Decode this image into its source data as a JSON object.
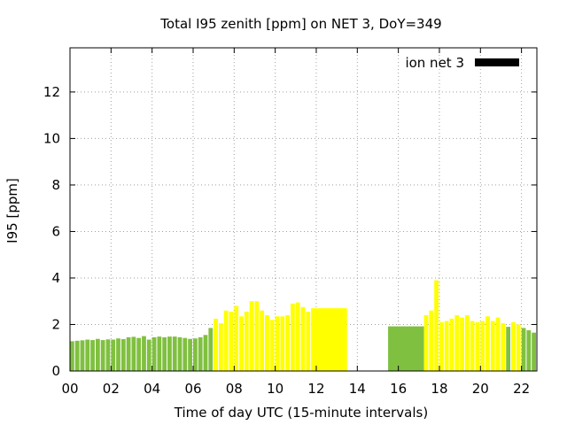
{
  "chart_data": {
    "type": "bar",
    "title": "Total I95 zenith [ppm] on NET 3, DoY=349",
    "xlabel": "Time of day UTC (15-minute intervals)",
    "ylabel": "I95 [ppm]",
    "xlim": [
      0,
      22.75
    ],
    "ylim": [
      0,
      13.9
    ],
    "xticks": [
      0,
      2,
      4,
      6,
      8,
      10,
      12,
      14,
      16,
      18,
      20,
      22
    ],
    "xtick_labels": [
      "00",
      "02",
      "04",
      "06",
      "08",
      "10",
      "12",
      "14",
      "16",
      "18",
      "20",
      "22"
    ],
    "yticks": [
      0,
      2,
      4,
      6,
      8,
      10,
      12
    ],
    "grid": true,
    "legend": {
      "label": "ion net 3",
      "color": "#000000",
      "position": "top-right"
    },
    "colors": {
      "green": "#80c040",
      "yellow": "#ffff00"
    },
    "bars": [
      {
        "start": 0.0,
        "end": 0.25,
        "value": 1.28,
        "color": "green"
      },
      {
        "start": 0.25,
        "end": 0.5,
        "value": 1.3,
        "color": "green"
      },
      {
        "start": 0.5,
        "end": 0.75,
        "value": 1.32,
        "color": "green"
      },
      {
        "start": 0.75,
        "end": 1.0,
        "value": 1.35,
        "color": "green"
      },
      {
        "start": 1.0,
        "end": 1.25,
        "value": 1.33,
        "color": "green"
      },
      {
        "start": 1.25,
        "end": 1.5,
        "value": 1.38,
        "color": "green"
      },
      {
        "start": 1.5,
        "end": 1.75,
        "value": 1.33,
        "color": "green"
      },
      {
        "start": 1.75,
        "end": 2.0,
        "value": 1.36,
        "color": "green"
      },
      {
        "start": 2.0,
        "end": 2.25,
        "value": 1.35,
        "color": "green"
      },
      {
        "start": 2.25,
        "end": 2.5,
        "value": 1.4,
        "color": "green"
      },
      {
        "start": 2.5,
        "end": 2.75,
        "value": 1.37,
        "color": "green"
      },
      {
        "start": 2.75,
        "end": 3.0,
        "value": 1.45,
        "color": "green"
      },
      {
        "start": 3.0,
        "end": 3.25,
        "value": 1.47,
        "color": "green"
      },
      {
        "start": 3.25,
        "end": 3.5,
        "value": 1.42,
        "color": "green"
      },
      {
        "start": 3.5,
        "end": 3.75,
        "value": 1.5,
        "color": "green"
      },
      {
        "start": 3.75,
        "end": 4.0,
        "value": 1.35,
        "color": "green"
      },
      {
        "start": 4.0,
        "end": 4.25,
        "value": 1.45,
        "color": "green"
      },
      {
        "start": 4.25,
        "end": 4.5,
        "value": 1.48,
        "color": "green"
      },
      {
        "start": 4.5,
        "end": 4.75,
        "value": 1.45,
        "color": "green"
      },
      {
        "start": 4.75,
        "end": 5.0,
        "value": 1.48,
        "color": "green"
      },
      {
        "start": 5.0,
        "end": 5.25,
        "value": 1.48,
        "color": "green"
      },
      {
        "start": 5.25,
        "end": 5.5,
        "value": 1.45,
        "color": "green"
      },
      {
        "start": 5.5,
        "end": 5.75,
        "value": 1.42,
        "color": "green"
      },
      {
        "start": 5.75,
        "end": 6.0,
        "value": 1.38,
        "color": "green"
      },
      {
        "start": 6.0,
        "end": 6.25,
        "value": 1.4,
        "color": "green"
      },
      {
        "start": 6.25,
        "end": 6.5,
        "value": 1.45,
        "color": "green"
      },
      {
        "start": 6.5,
        "end": 6.75,
        "value": 1.55,
        "color": "green"
      },
      {
        "start": 6.75,
        "end": 7.0,
        "value": 1.85,
        "color": "green"
      },
      {
        "start": 7.0,
        "end": 7.25,
        "value": 2.25,
        "color": "yellow"
      },
      {
        "start": 7.25,
        "end": 7.5,
        "value": 2.05,
        "color": "yellow"
      },
      {
        "start": 7.5,
        "end": 7.75,
        "value": 2.6,
        "color": "yellow"
      },
      {
        "start": 7.75,
        "end": 8.0,
        "value": 2.55,
        "color": "yellow"
      },
      {
        "start": 8.0,
        "end": 8.25,
        "value": 2.8,
        "color": "yellow"
      },
      {
        "start": 8.25,
        "end": 8.5,
        "value": 2.35,
        "color": "yellow"
      },
      {
        "start": 8.5,
        "end": 8.75,
        "value": 2.55,
        "color": "yellow"
      },
      {
        "start": 8.75,
        "end": 9.0,
        "value": 3.0,
        "color": "yellow"
      },
      {
        "start": 9.0,
        "end": 9.25,
        "value": 3.0,
        "color": "yellow"
      },
      {
        "start": 9.25,
        "end": 9.5,
        "value": 2.6,
        "color": "yellow"
      },
      {
        "start": 9.5,
        "end": 9.75,
        "value": 2.4,
        "color": "yellow"
      },
      {
        "start": 9.75,
        "end": 10.0,
        "value": 2.2,
        "color": "yellow"
      },
      {
        "start": 10.0,
        "end": 10.25,
        "value": 2.35,
        "color": "yellow"
      },
      {
        "start": 10.25,
        "end": 10.5,
        "value": 2.35,
        "color": "yellow"
      },
      {
        "start": 10.5,
        "end": 10.75,
        "value": 2.4,
        "color": "yellow"
      },
      {
        "start": 10.75,
        "end": 11.0,
        "value": 2.9,
        "color": "yellow"
      },
      {
        "start": 11.0,
        "end": 11.25,
        "value": 2.95,
        "color": "yellow"
      },
      {
        "start": 11.25,
        "end": 11.5,
        "value": 2.75,
        "color": "yellow"
      },
      {
        "start": 11.5,
        "end": 11.75,
        "value": 2.55,
        "color": "yellow"
      },
      {
        "start": 11.75,
        "end": 13.5,
        "value": 2.7,
        "color": "yellow"
      },
      {
        "start": 15.5,
        "end": 17.25,
        "value": 1.92,
        "color": "green"
      },
      {
        "start": 17.25,
        "end": 17.5,
        "value": 2.4,
        "color": "yellow"
      },
      {
        "start": 17.5,
        "end": 17.75,
        "value": 2.6,
        "color": "yellow"
      },
      {
        "start": 17.75,
        "end": 18.0,
        "value": 3.9,
        "color": "yellow"
      },
      {
        "start": 18.0,
        "end": 18.25,
        "value": 2.1,
        "color": "yellow"
      },
      {
        "start": 18.25,
        "end": 18.5,
        "value": 2.15,
        "color": "yellow"
      },
      {
        "start": 18.5,
        "end": 18.75,
        "value": 2.25,
        "color": "yellow"
      },
      {
        "start": 18.75,
        "end": 19.0,
        "value": 2.4,
        "color": "yellow"
      },
      {
        "start": 19.0,
        "end": 19.25,
        "value": 2.3,
        "color": "yellow"
      },
      {
        "start": 19.25,
        "end": 19.5,
        "value": 2.4,
        "color": "yellow"
      },
      {
        "start": 19.5,
        "end": 19.75,
        "value": 2.15,
        "color": "yellow"
      },
      {
        "start": 19.75,
        "end": 20.0,
        "value": 2.1,
        "color": "yellow"
      },
      {
        "start": 20.0,
        "end": 20.25,
        "value": 2.15,
        "color": "yellow"
      },
      {
        "start": 20.25,
        "end": 20.5,
        "value": 2.35,
        "color": "yellow"
      },
      {
        "start": 20.5,
        "end": 20.75,
        "value": 2.15,
        "color": "yellow"
      },
      {
        "start": 20.75,
        "end": 21.0,
        "value": 2.3,
        "color": "yellow"
      },
      {
        "start": 21.0,
        "end": 21.25,
        "value": 2.05,
        "color": "yellow"
      },
      {
        "start": 21.25,
        "end": 21.5,
        "value": 1.9,
        "color": "green"
      },
      {
        "start": 21.5,
        "end": 21.75,
        "value": 2.1,
        "color": "yellow"
      },
      {
        "start": 21.75,
        "end": 22.0,
        "value": 2.0,
        "color": "yellow"
      },
      {
        "start": 22.0,
        "end": 22.25,
        "value": 1.85,
        "color": "green"
      },
      {
        "start": 22.25,
        "end": 22.5,
        "value": 1.75,
        "color": "green"
      },
      {
        "start": 22.5,
        "end": 22.75,
        "value": 1.65,
        "color": "green"
      }
    ]
  }
}
